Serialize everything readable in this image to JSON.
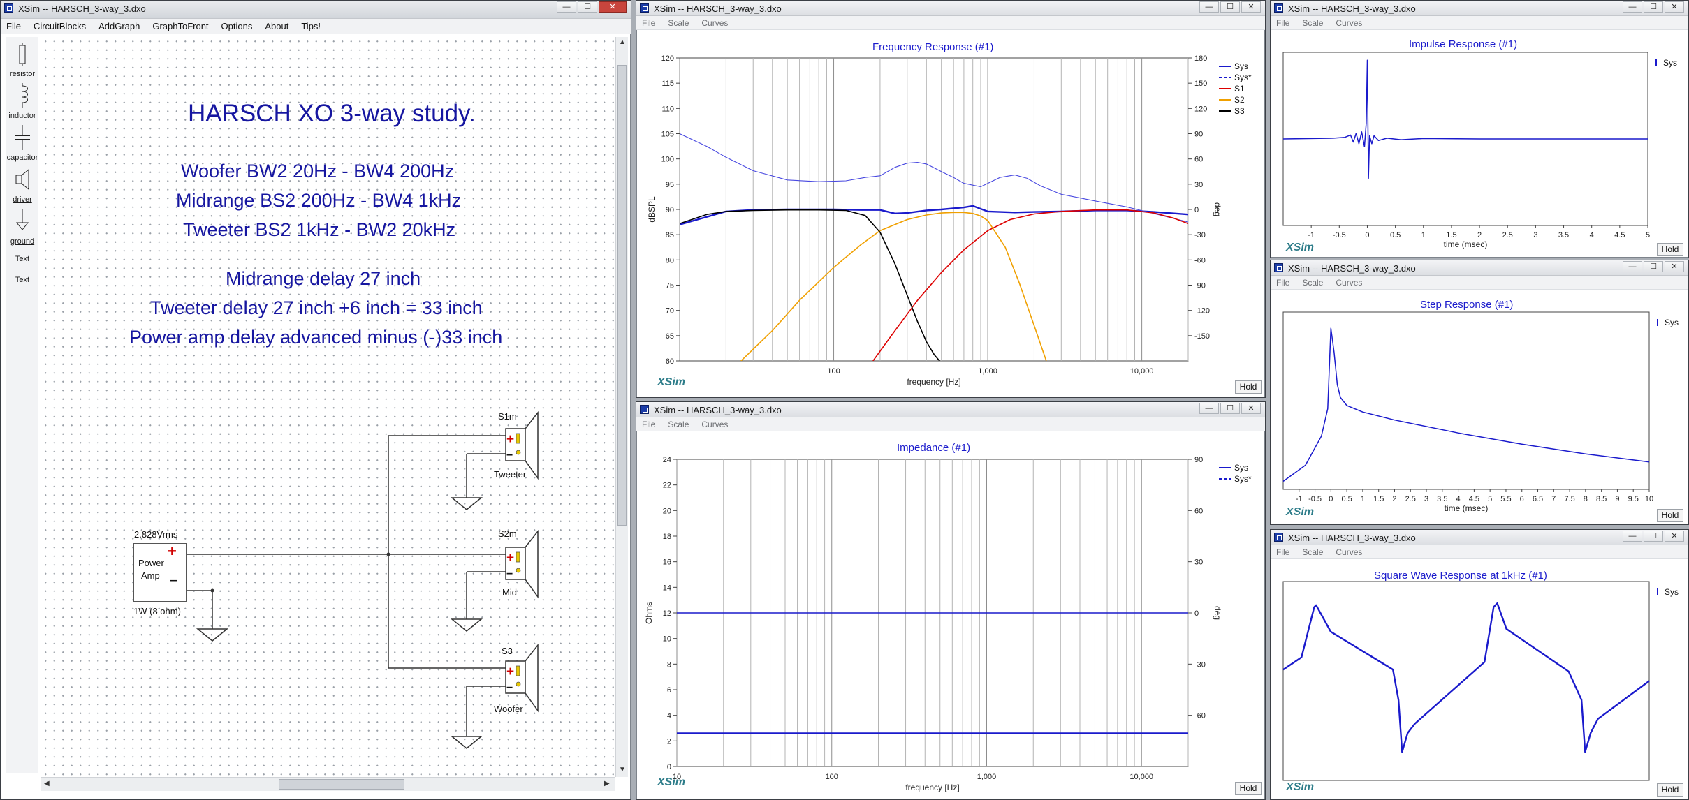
{
  "schematic": {
    "window_title": "XSim -- HARSCH_3-way_3.dxo",
    "menu": [
      "File",
      "CircuitBlocks",
      "AddGraph",
      "GraphToFront",
      "Options",
      "About",
      "Tips!"
    ],
    "toolbox": [
      "resistor",
      "inductor",
      "capacitor",
      "driver",
      "ground",
      "Text",
      "Text"
    ],
    "heading": "HARSCH XO 3-way study.",
    "lines": [
      "Woofer BW2 20Hz - BW4 200Hz",
      "Midrange BS2 200Hz - BW4 1kHz",
      "Tweeter BS2 1kHz - BW2 20kHz",
      "Midrange delay 27 inch",
      "Tweeter delay 27 inch +6 inch = 33 inch",
      "Power amp delay advanced minus (-)33 inch"
    ],
    "amp": {
      "voltage": "2.828Vrms",
      "name_line1": "Power",
      "name_line2": "Amp",
      "rating": "1W (8 ohm)"
    },
    "drivers": [
      {
        "ref": "S1m",
        "label": "Tweeter"
      },
      {
        "ref": "S2m",
        "label": "Mid"
      },
      {
        "ref": "S3",
        "label": "Woofer"
      }
    ],
    "controls": [
      "—",
      "☐",
      "✕"
    ]
  },
  "freq_window": {
    "window_title": "XSim -- HARSCH_3-way_3.dxo",
    "menu": [
      "File",
      "Scale",
      "Curves"
    ],
    "title": "Frequency Response (#1)",
    "xlabel": "frequency [Hz]",
    "ylabel": "dBSPL",
    "y2label": "deg",
    "hold": "Hold",
    "logo": "XSim"
  },
  "imp_window": {
    "window_title": "XSim -- HARSCH_3-way_3.dxo",
    "menu": [
      "File",
      "Scale",
      "Curves"
    ],
    "title": "Impedance (#1)",
    "xlabel": "frequency [Hz]",
    "ylabel": "Ohms",
    "y2label": "deg",
    "hold": "Hold",
    "logo": "XSim"
  },
  "impulse_window": {
    "window_title": "XSim -- HARSCH_3-way_3.dxo",
    "menu": [
      "File",
      "Scale",
      "Curves"
    ],
    "title": "Impulse Response (#1)",
    "xlabel": "time (msec)",
    "hold": "Hold",
    "logo": "XSim"
  },
  "step_window": {
    "window_title": "XSim -- HARSCH_3-way_3.dxo",
    "menu": [
      "File",
      "Scale",
      "Curves"
    ],
    "title": "Step Response (#1)",
    "xlabel": "time (msec)",
    "hold": "Hold",
    "logo": "XSim"
  },
  "square_window": {
    "window_title": "XSim -- HARSCH_3-way_3.dxo",
    "menu": [
      "File",
      "Scale",
      "Curves"
    ],
    "title": "Square Wave Response at 1kHz (#1)",
    "hold": "Hold",
    "logo": "XSim"
  },
  "chart_data": [
    {
      "id": "frequency_response",
      "type": "line",
      "title": "Frequency Response (#1)",
      "xlabel": "frequency [Hz]",
      "ylabel": "dBSPL",
      "y2label": "deg",
      "xscale": "log",
      "xlim": [
        10,
        20000
      ],
      "ylim": [
        60,
        120
      ],
      "y2lim": [
        -180,
        180
      ],
      "xticks": [
        100,
        1000,
        10000
      ],
      "xtick_labels": [
        "100",
        "1,000",
        "10,000"
      ],
      "yticks": [
        60,
        65,
        70,
        75,
        80,
        85,
        90,
        95,
        100,
        105,
        110,
        115,
        120
      ],
      "y2ticks": [
        -150,
        -120,
        -90,
        -60,
        -30,
        0,
        30,
        60,
        90,
        120,
        150,
        180
      ],
      "legend": [
        "Sys",
        "Sys*",
        "S1",
        "S2",
        "S3"
      ],
      "legend_position": "top-right",
      "series": [
        {
          "name": "Sys",
          "color": "#1a1acc",
          "style": "solid",
          "width": 2.4,
          "x": [
            10,
            20,
            30,
            50,
            100,
            150,
            200,
            250,
            300,
            400,
            500,
            700,
            800,
            1000,
            1500,
            2000,
            3000,
            5000,
            8000,
            12000,
            20000
          ],
          "y": [
            87,
            89.6,
            89.9,
            90,
            90,
            89.9,
            89.9,
            89.2,
            89.3,
            89.8,
            90,
            90.4,
            90.7,
            89.6,
            89.4,
            89.5,
            89.6,
            89.8,
            89.8,
            89.5,
            89
          ]
        },
        {
          "name": "Sys phase",
          "color": "#4848e0",
          "style": "solid",
          "width": 1.1,
          "axis": "y2",
          "x": [
            10,
            15,
            20,
            30,
            50,
            80,
            120,
            160,
            200,
            250,
            300,
            350,
            400,
            500,
            600,
            700,
            900,
            1000,
            1200,
            1500,
            1800,
            2200,
            3000,
            5000,
            8000,
            12000,
            20000
          ],
          "y": [
            90,
            75,
            62,
            46,
            35,
            33,
            34,
            38,
            40,
            50,
            55,
            56,
            54,
            45,
            38,
            31,
            27,
            31,
            38,
            41,
            37,
            28,
            18,
            10,
            3,
            -5,
            -15
          ]
        },
        {
          "name": "S1",
          "color": "#dd0000",
          "style": "solid",
          "width": 1.6,
          "x": [
            180,
            250,
            350,
            500,
            700,
            1000,
            1400,
            2000,
            3000,
            5000,
            8000,
            12000,
            16000,
            20000
          ],
          "y": [
            60,
            66,
            72,
            77.5,
            82,
            85.8,
            88,
            89.1,
            89.6,
            89.9,
            89.9,
            89.3,
            88.3,
            87.2
          ]
        },
        {
          "name": "S2",
          "color": "#f0a000",
          "style": "solid",
          "width": 1.6,
          "x": [
            25,
            40,
            60,
            100,
            150,
            200,
            300,
            400,
            500,
            600,
            700,
            800,
            900,
            1000,
            1300,
            1600,
            2000,
            2400
          ],
          "y": [
            60,
            66,
            72,
            78.5,
            83,
            85.8,
            88,
            88.9,
            89.3,
            89.4,
            89.4,
            89.2,
            88.7,
            87.8,
            82.5,
            75.5,
            67,
            60
          ]
        },
        {
          "name": "S3",
          "color": "#000000",
          "style": "solid",
          "width": 1.6,
          "x": [
            10,
            15,
            20,
            30,
            50,
            80,
            120,
            160,
            200,
            250,
            300,
            350,
            400,
            450,
            500
          ],
          "y": [
            87.2,
            89,
            89.6,
            89.8,
            89.9,
            89.9,
            89.8,
            88.8,
            85.5,
            79.2,
            73,
            67.8,
            63.8,
            61.2,
            59.6
          ]
        }
      ]
    },
    {
      "id": "impedance",
      "type": "line",
      "title": "Impedance (#1)",
      "xlabel": "frequency [Hz]",
      "ylabel": "Ohms",
      "y2label": "deg",
      "xscale": "log",
      "xlim": [
        10,
        20000
      ],
      "ylim": [
        0,
        24
      ],
      "y2lim": [
        -90,
        90
      ],
      "xticks": [
        10,
        100,
        1000,
        10000
      ],
      "xtick_labels": [
        "10",
        "100",
        "1,000",
        "10,000"
      ],
      "yticks": [
        0,
        2,
        4,
        6,
        8,
        10,
        12,
        14,
        16,
        18,
        20,
        22,
        24
      ],
      "y2ticks": [
        -60,
        -30,
        0,
        30,
        60,
        90
      ],
      "legend": [
        "Sys",
        "Sys*"
      ],
      "legend_position": "top-right",
      "series": [
        {
          "name": "Sys",
          "color": "#1a1acc",
          "style": "solid",
          "width": 2,
          "x": [
            10,
            20000
          ],
          "y": [
            2.6,
            2.6
          ]
        },
        {
          "name": "Sys phase",
          "color": "#1a1acc",
          "style": "solid",
          "width": 1.4,
          "axis": "y2",
          "x": [
            10,
            20000
          ],
          "y": [
            0,
            0
          ]
        }
      ]
    },
    {
      "id": "impulse",
      "type": "line",
      "title": "Impulse Response (#1)",
      "xlabel": "time (msec)",
      "xlim": [
        -1.5,
        5
      ],
      "xticks": [
        -1,
        -0.5,
        0,
        0.5,
        1,
        1.5,
        2,
        2.5,
        3,
        3.5,
        4,
        4.5,
        5
      ],
      "legend": [
        "Sys"
      ],
      "legend_position": "top-right",
      "series": [
        {
          "name": "Sys",
          "color": "#1a1acc",
          "x": [
            -1.5,
            -0.6,
            -0.4,
            -0.3,
            -0.25,
            -0.2,
            -0.15,
            -0.1,
            -0.05,
            -0.02,
            0,
            0.02,
            0.04,
            0.08,
            0.12,
            0.2,
            0.35,
            0.6,
            1,
            2,
            3,
            4,
            5
          ],
          "y": [
            0,
            0.01,
            0.02,
            0.05,
            -0.04,
            0.07,
            -0.06,
            0.09,
            -0.1,
            0.2,
            1,
            -0.5,
            0.04,
            -0.06,
            0.04,
            -0.02,
            0.01,
            -0.01,
            0.005,
            0,
            0,
            0,
            0
          ]
        }
      ]
    },
    {
      "id": "step",
      "type": "line",
      "title": "Step Response (#1)",
      "xlabel": "time (msec)",
      "xlim": [
        -1.5,
        10
      ],
      "xticks": [
        -1,
        -0.5,
        0,
        0.5,
        1,
        1.5,
        2,
        2.5,
        3,
        3.5,
        4,
        4.5,
        5,
        5.5,
        6,
        6.5,
        7,
        7.5,
        8,
        8.5,
        9,
        9.5,
        10
      ],
      "legend": [
        "Sys"
      ],
      "legend_position": "top-right",
      "series": [
        {
          "name": "Sys",
          "color": "#1a1acc",
          "x": [
            -1.5,
            -0.8,
            -0.3,
            -0.1,
            0,
            0.1,
            0.2,
            0.3,
            0.5,
            1,
            2,
            4,
            6,
            8,
            10
          ],
          "y": [
            0,
            0.1,
            0.28,
            0.45,
            0.95,
            0.8,
            0.6,
            0.52,
            0.47,
            0.43,
            0.38,
            0.3,
            0.23,
            0.17,
            0.12
          ]
        }
      ]
    },
    {
      "id": "square_wave",
      "type": "line",
      "title": "Square Wave Response at 1kHz (#1)",
      "legend": [
        "Sys"
      ],
      "legend_position": "top-right",
      "series": [
        {
          "name": "Sys",
          "color": "#1a1acc",
          "width": 2.4,
          "x": [
            0,
            0.05,
            0.085,
            0.09,
            0.13,
            0.3,
            0.315,
            0.325,
            0.34,
            0.36,
            0.55,
            0.575,
            0.585,
            0.61,
            0.78,
            0.815,
            0.825,
            0.84,
            0.86,
            1.0
          ],
          "y": [
            0.12,
            0.25,
            0.78,
            0.8,
            0.52,
            0.12,
            -0.2,
            -0.75,
            -0.55,
            -0.45,
            0.2,
            0.78,
            0.82,
            0.55,
            0.1,
            -0.2,
            -0.75,
            -0.55,
            -0.4,
            0.0
          ]
        }
      ]
    }
  ]
}
